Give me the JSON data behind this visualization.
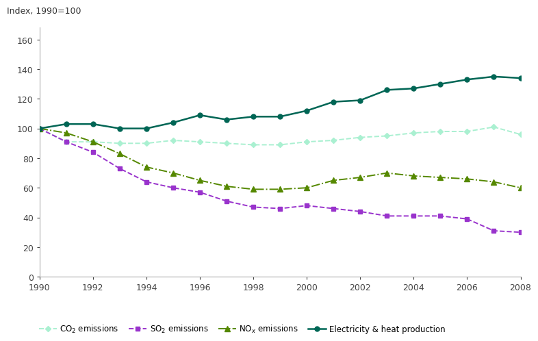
{
  "years": [
    1990,
    1991,
    1992,
    1993,
    1994,
    1995,
    1996,
    1997,
    1998,
    1999,
    2000,
    2001,
    2002,
    2003,
    2004,
    2005,
    2006,
    2007,
    2008
  ],
  "co2": [
    100,
    91,
    91,
    90,
    90,
    92,
    91,
    90,
    89,
    89,
    91,
    92,
    94,
    95,
    97,
    98,
    98,
    101,
    96
  ],
  "so2": [
    100,
    91,
    84,
    73,
    64,
    60,
    57,
    51,
    47,
    46,
    48,
    46,
    44,
    41,
    41,
    41,
    39,
    31,
    30
  ],
  "nox": [
    100,
    97,
    91,
    83,
    74,
    70,
    65,
    61,
    59,
    59,
    60,
    65,
    67,
    70,
    68,
    67,
    66,
    64,
    60
  ],
  "elec": [
    100,
    103,
    103,
    100,
    100,
    104,
    109,
    106,
    108,
    108,
    112,
    118,
    119,
    126,
    127,
    130,
    133,
    135,
    134
  ],
  "co2_color": "#aaf0d1",
  "so2_color": "#9933cc",
  "nox_color": "#558800",
  "elec_color": "#006655",
  "ylim": [
    0,
    168
  ],
  "yticks": [
    0,
    20,
    40,
    60,
    80,
    100,
    120,
    140,
    160
  ],
  "ylabel_label": "Index, 1990=100",
  "background_color": "#ffffff"
}
